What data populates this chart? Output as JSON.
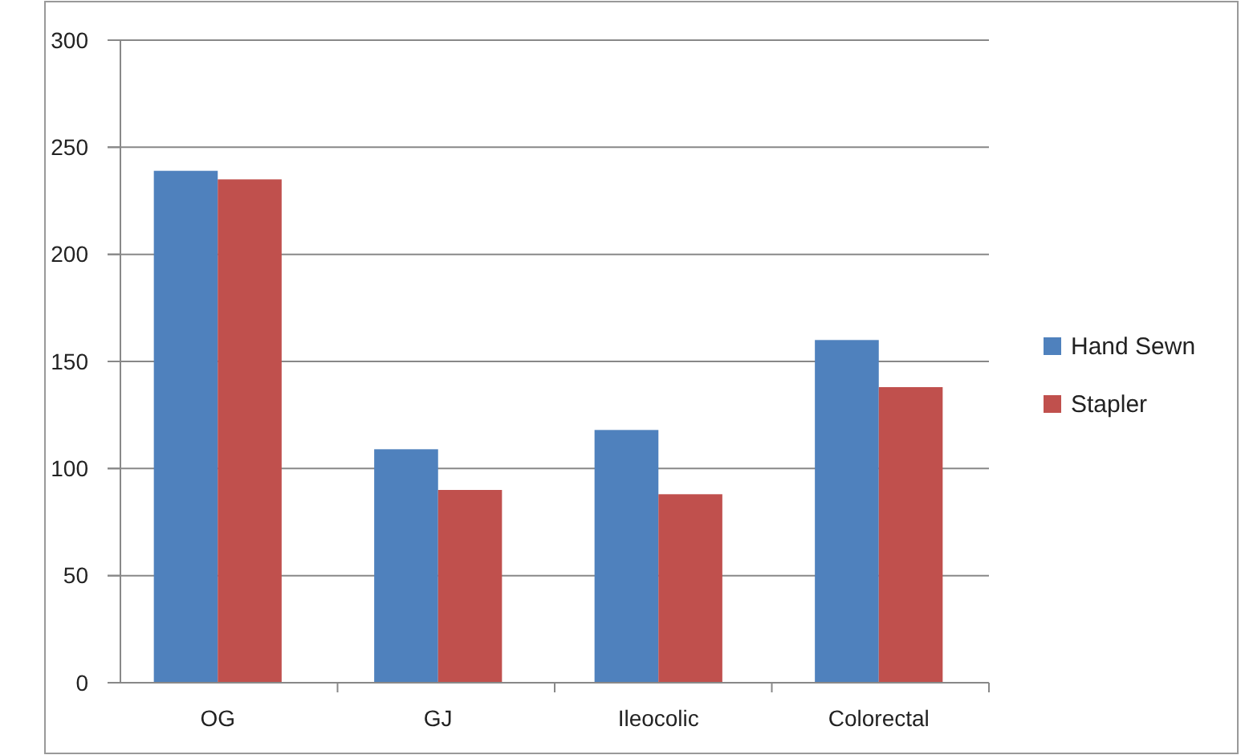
{
  "chart_data": {
    "type": "bar",
    "categories": [
      "OG",
      "GJ",
      "Ileocolic",
      "Colorectal"
    ],
    "series": [
      {
        "name": "Hand Sewn",
        "color": "#4f81bd",
        "values": [
          239,
          109,
          118,
          160
        ]
      },
      {
        "name": "Stapler",
        "color": "#c0504d",
        "values": [
          235,
          90,
          88,
          138
        ]
      }
    ],
    "ylim": [
      0,
      300
    ],
    "yticks": [
      0,
      50,
      100,
      150,
      200,
      250,
      300
    ],
    "grid": "y",
    "legend": "right"
  }
}
